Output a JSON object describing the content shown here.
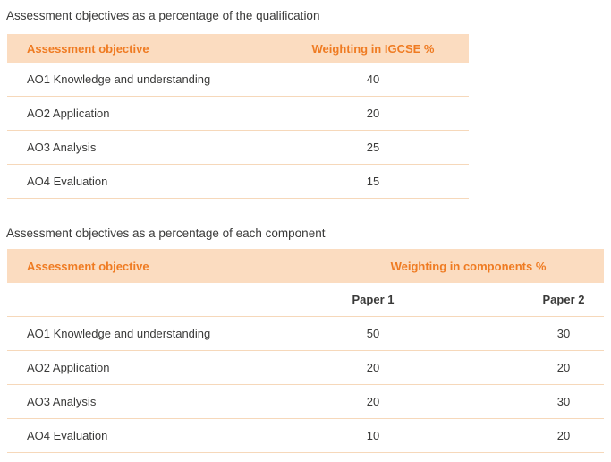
{
  "colors": {
    "accent_orange": "#ef7b22",
    "header_bg": "#fbdcc0",
    "row_line": "#f6d8ba",
    "text_dark": "#3a3a39"
  },
  "table1": {
    "title": "Assessment objectives as a percentage of the qualification",
    "columns": [
      "Assessment objective",
      "Weighting in IGCSE %"
    ],
    "rows": [
      {
        "objective": "AO1 Knowledge and understanding",
        "weight": "40"
      },
      {
        "objective": "AO2 Application",
        "weight": "20"
      },
      {
        "objective": "AO3 Analysis",
        "weight": "25"
      },
      {
        "objective": "AO4 Evaluation",
        "weight": "15"
      }
    ]
  },
  "table2": {
    "title": "Assessment objectives as a percentage of each component",
    "columns": [
      "Assessment objective",
      "Weighting in components %"
    ],
    "subcolumns": [
      "Paper 1",
      "Paper 2"
    ],
    "rows": [
      {
        "objective": "AO1 Knowledge and understanding",
        "paper1": "50",
        "paper2": "30"
      },
      {
        "objective": "AO2 Application",
        "paper1": "20",
        "paper2": "20"
      },
      {
        "objective": "AO3 Analysis",
        "paper1": "20",
        "paper2": "30"
      },
      {
        "objective": "AO4 Evaluation",
        "paper1": "10",
        "paper2": "20"
      }
    ]
  }
}
